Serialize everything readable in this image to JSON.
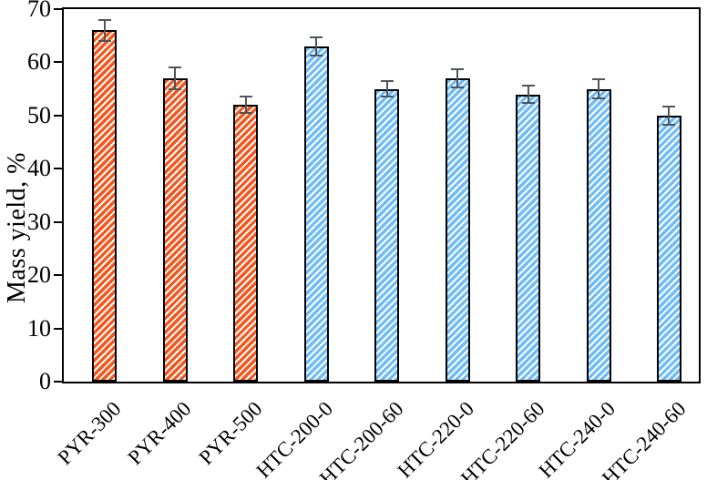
{
  "chart_data": {
    "type": "bar",
    "title": "",
    "ylabel": "Mass yield, %",
    "xlabel": "",
    "categories": [
      "PYR-300",
      "PYR-400",
      "PYR-500",
      "HTC-200-0",
      "HTC-200-60",
      "HTC-220-0",
      "HTC-220-60",
      "HTC-240-0",
      "HTC-240-60"
    ],
    "series": [
      {
        "name": "Mass yield",
        "values": [
          66,
          57,
          52,
          63,
          55,
          57,
          54,
          55,
          50
        ],
        "errors": [
          2,
          2,
          1.5,
          1.7,
          1.5,
          1.7,
          1.7,
          1.8,
          1.7
        ],
        "bar_colors": [
          "#F4571E",
          "#F4571E",
          "#F4571E",
          "#6FBCF8",
          "#6FBCF8",
          "#6FBCF8",
          "#6FBCF8",
          "#6FBCF8",
          "#6FBCF8"
        ]
      }
    ],
    "groups": [
      {
        "name": "PYR",
        "color": "#F4571E",
        "hatch": "diagonal-stripes"
      },
      {
        "name": "HTC",
        "color": "#6FBCF8",
        "hatch": "diagonal-stripes"
      }
    ],
    "ylim": [
      0,
      70
    ],
    "yticks": [
      0,
      10,
      20,
      30,
      40,
      50,
      60,
      70
    ],
    "grid": false,
    "legend": "none",
    "error_bar_color": "#4f5559",
    "axis_color": "#000000",
    "background_color": "#ffffff"
  }
}
